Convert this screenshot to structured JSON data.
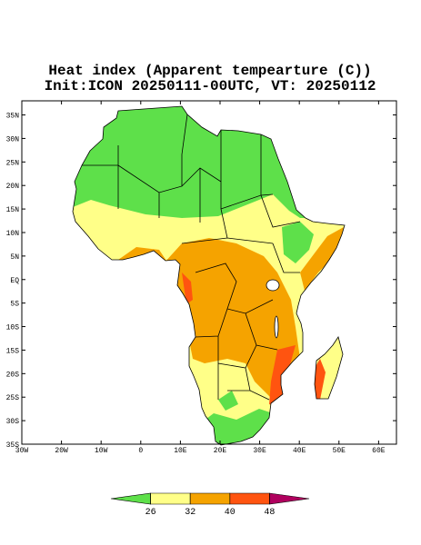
{
  "title": "Heat index (Apparent tempearture (C))",
  "subtitle": "Init:ICON 20250111-00UTC, VT: 20250112",
  "latlim": [
    -35,
    38
  ],
  "lonlim": [
    -30,
    64.5
  ],
  "lat_ticks": [
    {
      "value": 35,
      "label": "35N"
    },
    {
      "value": 30,
      "label": "30N"
    },
    {
      "value": 25,
      "label": "25N"
    },
    {
      "value": 20,
      "label": "20N"
    },
    {
      "value": 15,
      "label": "15N"
    },
    {
      "value": 10,
      "label": "10N"
    },
    {
      "value": 5,
      "label": "5N"
    },
    {
      "value": 0,
      "label": "EQ"
    },
    {
      "value": -5,
      "label": "5S"
    },
    {
      "value": -10,
      "label": "10S"
    },
    {
      "value": -15,
      "label": "15S"
    },
    {
      "value": -20,
      "label": "20S"
    },
    {
      "value": -25,
      "label": "25S"
    },
    {
      "value": -30,
      "label": "30S"
    },
    {
      "value": -35,
      "label": "35S"
    }
  ],
  "lon_ticks": [
    {
      "value": -30,
      "label": "30W"
    },
    {
      "value": -20,
      "label": "20W"
    },
    {
      "value": -10,
      "label": "10W"
    },
    0,
    {
      "value": 10,
      "label": "10E"
    },
    {
      "value": 20,
      "label": "20E"
    },
    {
      "value": 30,
      "label": "30E"
    },
    {
      "value": 40,
      "label": "40E"
    },
    {
      "value": 50,
      "label": "50E"
    },
    {
      "value": 60,
      "label": "60E"
    }
  ],
  "colorbar": {
    "levels": [
      26,
      32,
      40,
      48
    ],
    "colors": [
      "#5ee04a",
      "#ffff88",
      "#f5a300",
      "#ff5410",
      "#b0005e"
    ]
  }
}
